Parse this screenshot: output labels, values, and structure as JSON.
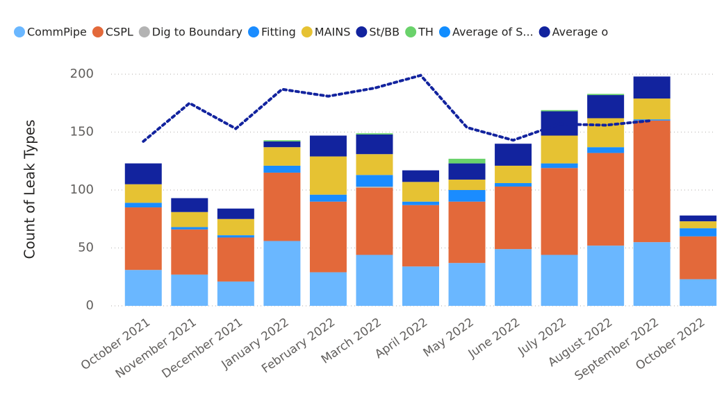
{
  "chart_data": {
    "type": "bar",
    "y_label": "Count of Leak Types",
    "categories": [
      "October 2021",
      "November 2021",
      "December 2021",
      "January 2022",
      "February 2022",
      "March 2022",
      "April 2022",
      "May 2022",
      "June 2022",
      "July 2022",
      "August 2022",
      "September 2022",
      "October 2022"
    ],
    "series": [
      {
        "name": "CommPipe",
        "color": "#6ab7ff",
        "values": [
          31,
          27,
          21,
          56,
          29,
          44,
          34,
          37,
          49,
          44,
          52,
          55,
          23
        ]
      },
      {
        "name": "CSPL",
        "color": "#e3693a",
        "values": [
          54,
          39,
          38,
          59,
          61,
          58,
          53,
          53,
          54,
          75,
          80,
          105,
          37
        ]
      },
      {
        "name": "Dig to Boundary",
        "color": "#b3b3b3",
        "values": [
          0,
          0,
          0,
          0,
          0,
          1,
          0,
          0,
          0,
          0,
          0,
          0,
          0
        ]
      },
      {
        "name": "Fitting",
        "color": "#1a8cff",
        "values": [
          4,
          2,
          2,
          6,
          6,
          10,
          3,
          10,
          3,
          4,
          5,
          1,
          7
        ]
      },
      {
        "name": "MAINS",
        "color": "#e6c233",
        "values": [
          16,
          13,
          14,
          16,
          33,
          18,
          17,
          9,
          15,
          24,
          25,
          18,
          6
        ]
      },
      {
        "name": "St/BB",
        "color": "#12239e",
        "values": [
          18,
          12,
          9,
          5,
          18,
          17,
          10,
          14,
          19,
          21,
          20,
          19,
          5
        ]
      },
      {
        "name": "TH",
        "color": "#6ad26b",
        "values": [
          0,
          0,
          0,
          1,
          0,
          1,
          0,
          4,
          0,
          1,
          1,
          0,
          0
        ]
      },
      {
        "name": "Average of S...",
        "color": "#118dff",
        "type": "line",
        "values": [
          null,
          null,
          null,
          null,
          null,
          null,
          null,
          null,
          null,
          null,
          null,
          null,
          null
        ]
      },
      {
        "name": "Average o",
        "color": "#12239e",
        "type": "line",
        "values": [
          142,
          175,
          153,
          187,
          181,
          188,
          199,
          154,
          143,
          157,
          156,
          160,
          null
        ]
      }
    ],
    "ylim": [
      0,
      200
    ],
    "yticks": [
      0,
      50,
      100,
      150,
      200
    ],
    "grid": true
  }
}
